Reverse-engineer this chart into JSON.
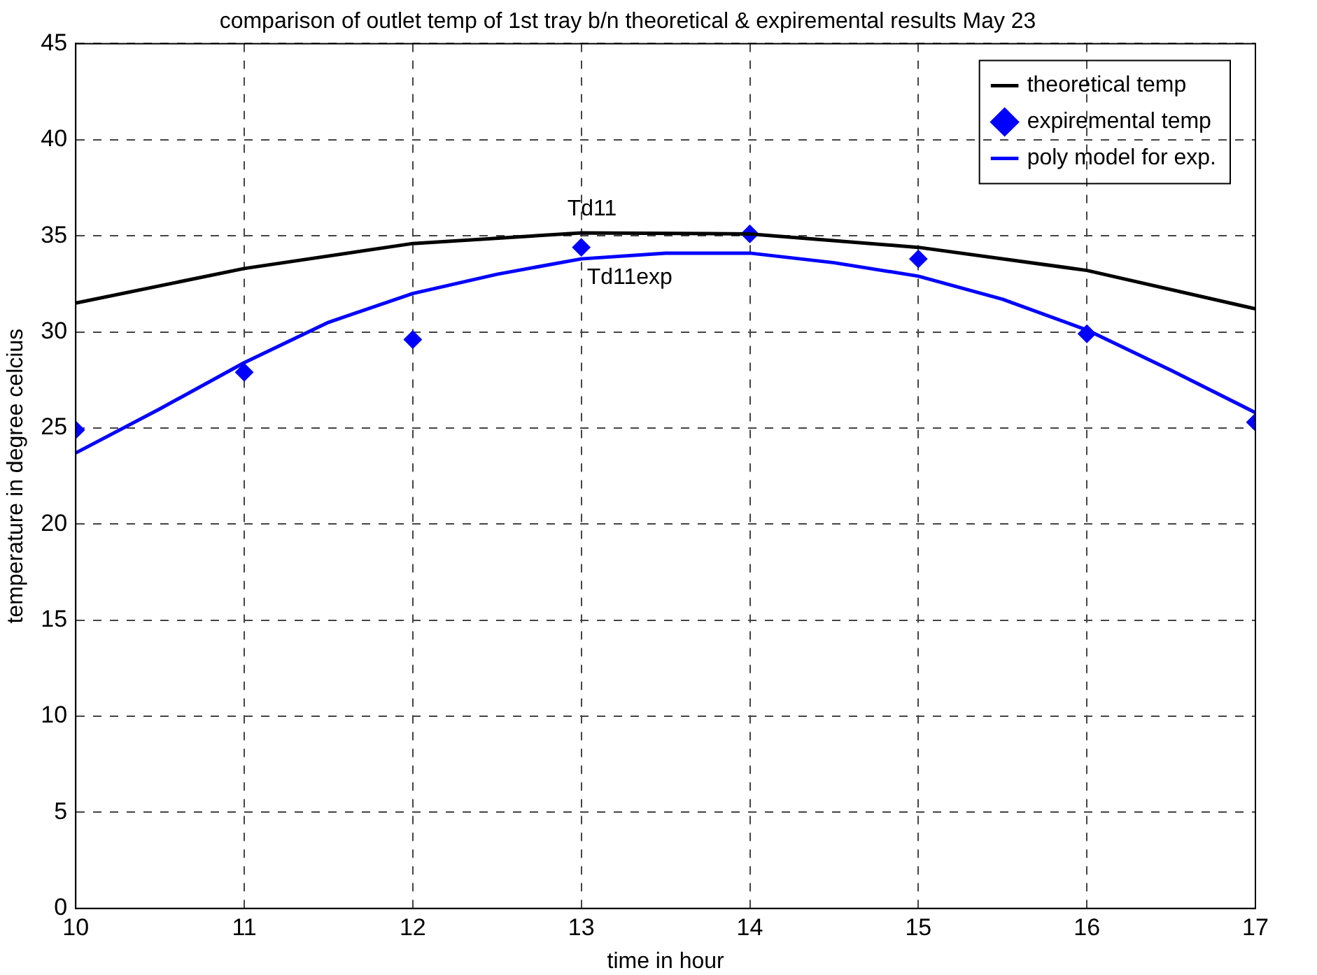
{
  "chart_data": {
    "type": "line",
    "title": "comparison of outlet temp of 1st tray b/n theoretical & expiremental results May 23",
    "xlabel": "time in hour",
    "ylabel": "temperature in degree celcius",
    "xlim": [
      10,
      17
    ],
    "xticks": [
      10,
      11,
      12,
      13,
      14,
      15,
      16,
      17
    ],
    "ylim": [
      0,
      45
    ],
    "yticks": [
      0,
      5,
      10,
      15,
      20,
      25,
      30,
      35,
      40,
      45
    ],
    "grid": true,
    "legend": "top right",
    "series": [
      {
        "name": "theoretical temp",
        "color": "#000000",
        "marker": "none",
        "x": [
          10,
          11,
          12,
          13,
          14,
          15,
          16,
          17
        ],
        "values": [
          31.5,
          33.3,
          34.6,
          35.15,
          35.1,
          34.4,
          33.2,
          31.2
        ]
      },
      {
        "name": "expiremental temp",
        "type": "scatter",
        "color": "#0000ff",
        "marker": "diamond",
        "x": [
          10,
          11,
          12,
          13,
          14,
          15,
          16,
          17
        ],
        "values": [
          24.9,
          27.9,
          29.6,
          34.4,
          35.1,
          33.8,
          29.9,
          25.3
        ]
      },
      {
        "name": "poly model for exp.",
        "color": "#0000ff",
        "marker": "none",
        "x": [
          10,
          10.5,
          11,
          11.5,
          12,
          12.5,
          13,
          13.5,
          14,
          14.5,
          15,
          15.5,
          16,
          16.5,
          17
        ],
        "values": [
          23.7,
          26.0,
          28.4,
          30.5,
          32.0,
          33.0,
          33.8,
          34.1,
          34.1,
          33.6,
          32.9,
          31.7,
          30.1,
          28.0,
          25.8
        ]
      }
    ],
    "annotations": [
      {
        "text": "Td11",
        "x": 13,
        "y": 35.15
      },
      {
        "text": "Td11exp",
        "x": 13,
        "y": 34.4
      }
    ]
  }
}
